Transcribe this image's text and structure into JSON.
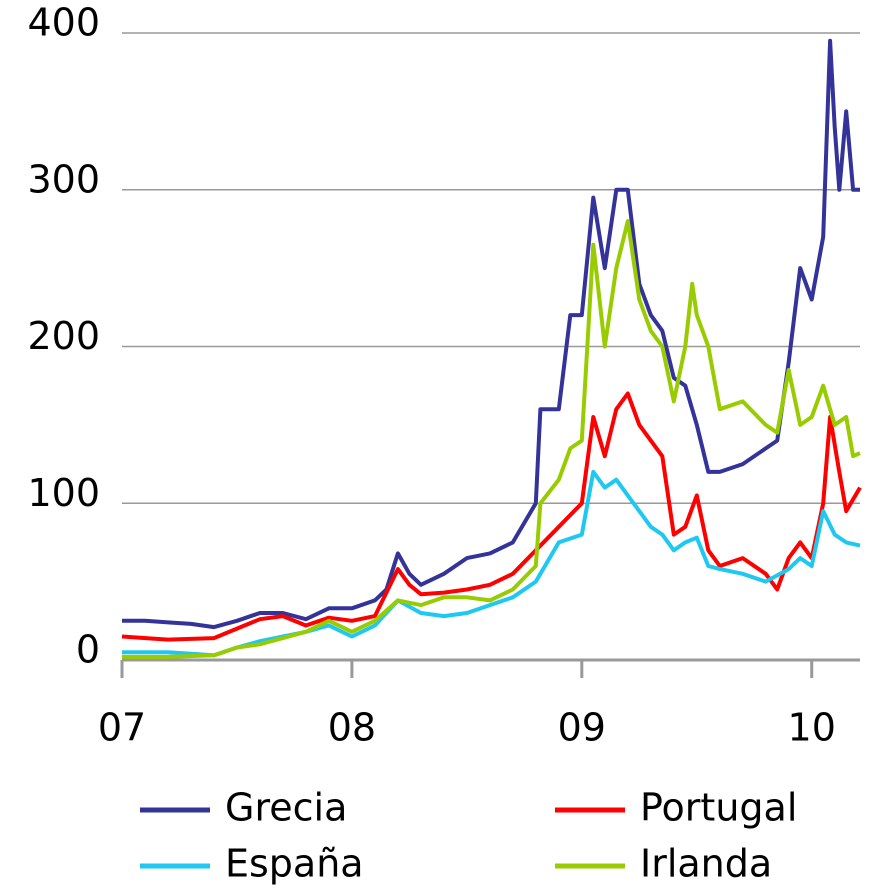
{
  "chart_data": {
    "type": "line",
    "xlim": [
      7,
      10.21
    ],
    "xticks": [
      {
        "value": 7,
        "label": "07"
      },
      {
        "value": 8,
        "label": "08"
      },
      {
        "value": 9,
        "label": "09"
      },
      {
        "value": 10,
        "label": "10"
      }
    ],
    "ylim": [
      0,
      400
    ],
    "yticks": [
      0,
      100,
      200,
      300,
      400
    ],
    "grid": true,
    "series": [
      {
        "name": "Grecia",
        "color": "#333399",
        "x": [
          7.0,
          7.1,
          7.2,
          7.3,
          7.4,
          7.5,
          7.6,
          7.7,
          7.8,
          7.9,
          8.0,
          8.1,
          8.15,
          8.2,
          8.25,
          8.3,
          8.4,
          8.5,
          8.6,
          8.7,
          8.8,
          8.82,
          8.9,
          8.95,
          9.0,
          9.05,
          9.1,
          9.15,
          9.2,
          9.25,
          9.3,
          9.35,
          9.4,
          9.45,
          9.5,
          9.55,
          9.6,
          9.7,
          9.8,
          9.85,
          9.9,
          9.95,
          10.0,
          10.05,
          10.08,
          10.1,
          10.12,
          10.15,
          10.18,
          10.21
        ],
        "values": [
          25,
          25,
          24,
          23,
          21,
          25,
          30,
          30,
          26,
          33,
          33,
          38,
          45,
          68,
          55,
          48,
          55,
          65,
          68,
          75,
          100,
          160,
          160,
          220,
          220,
          295,
          250,
          300,
          300,
          240,
          220,
          210,
          180,
          175,
          150,
          120,
          120,
          125,
          135,
          140,
          190,
          250,
          230,
          270,
          395,
          340,
          300,
          350,
          300,
          300
        ]
      },
      {
        "name": "Portugal",
        "color": "#ff0000",
        "x": [
          7.0,
          7.2,
          7.4,
          7.5,
          7.6,
          7.7,
          7.8,
          7.9,
          8.0,
          8.1,
          8.2,
          8.25,
          8.3,
          8.4,
          8.5,
          8.6,
          8.7,
          8.8,
          8.9,
          9.0,
          9.05,
          9.1,
          9.15,
          9.2,
          9.25,
          9.3,
          9.35,
          9.4,
          9.45,
          9.5,
          9.55,
          9.6,
          9.7,
          9.8,
          9.85,
          9.9,
          9.95,
          10.0,
          10.05,
          10.08,
          10.12,
          10.15,
          10.21
        ],
        "values": [
          15,
          13,
          14,
          20,
          26,
          28,
          22,
          27,
          25,
          28,
          58,
          48,
          42,
          43,
          45,
          48,
          55,
          70,
          85,
          100,
          155,
          130,
          160,
          170,
          150,
          140,
          130,
          80,
          85,
          105,
          70,
          60,
          65,
          55,
          45,
          65,
          75,
          65,
          100,
          155,
          120,
          95,
          110
        ]
      },
      {
        "name": "España",
        "color": "#1ec8f0",
        "x": [
          7.0,
          7.2,
          7.4,
          7.5,
          7.6,
          7.7,
          7.8,
          7.9,
          8.0,
          8.1,
          8.2,
          8.3,
          8.4,
          8.5,
          8.6,
          8.7,
          8.8,
          8.9,
          9.0,
          9.05,
          9.1,
          9.15,
          9.2,
          9.25,
          9.3,
          9.35,
          9.4,
          9.45,
          9.5,
          9.55,
          9.6,
          9.7,
          9.8,
          9.9,
          9.95,
          10.0,
          10.05,
          10.1,
          10.15,
          10.21
        ],
        "values": [
          5,
          5,
          3,
          8,
          12,
          15,
          18,
          22,
          15,
          22,
          38,
          30,
          28,
          30,
          35,
          40,
          50,
          75,
          80,
          120,
          110,
          115,
          105,
          95,
          85,
          80,
          70,
          75,
          78,
          60,
          58,
          55,
          50,
          58,
          65,
          60,
          95,
          80,
          75,
          73
        ]
      },
      {
        "name": "Irlanda",
        "color": "#99cc00",
        "x": [
          7.0,
          7.2,
          7.4,
          7.5,
          7.6,
          7.7,
          7.8,
          7.9,
          8.0,
          8.1,
          8.2,
          8.3,
          8.4,
          8.5,
          8.6,
          8.7,
          8.8,
          8.82,
          8.9,
          8.95,
          9.0,
          9.05,
          9.1,
          9.15,
          9.2,
          9.25,
          9.3,
          9.35,
          9.4,
          9.45,
          9.48,
          9.5,
          9.55,
          9.6,
          9.7,
          9.8,
          9.85,
          9.9,
          9.95,
          10.0,
          10.05,
          10.1,
          10.15,
          10.18,
          10.21
        ],
        "values": [
          2,
          2,
          3,
          8,
          10,
          14,
          18,
          25,
          18,
          25,
          38,
          35,
          40,
          40,
          38,
          45,
          60,
          100,
          115,
          135,
          140,
          265,
          200,
          250,
          280,
          230,
          210,
          200,
          165,
          200,
          240,
          220,
          200,
          160,
          165,
          150,
          145,
          185,
          150,
          155,
          175,
          150,
          155,
          130,
          132
        ]
      }
    ]
  }
}
